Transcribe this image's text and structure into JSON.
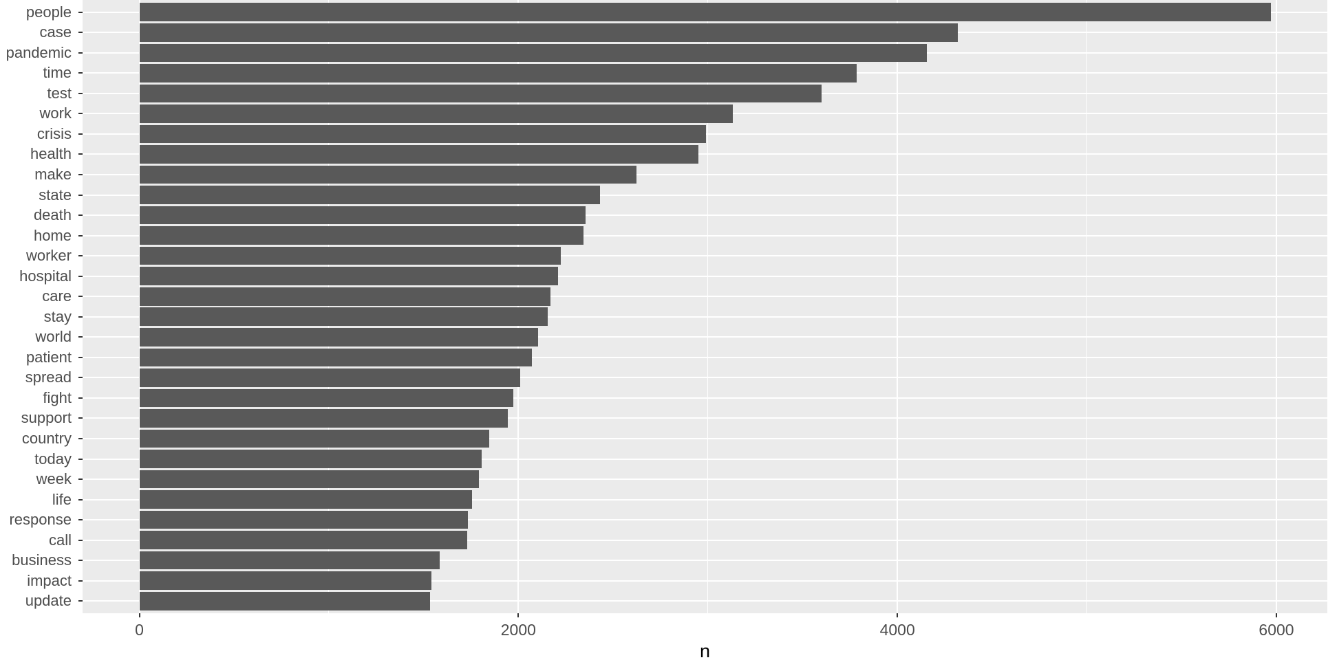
{
  "chart_data": {
    "type": "bar",
    "orientation": "horizontal",
    "title": "",
    "xlabel": "n",
    "ylabel": "",
    "categories": [
      "people",
      "case",
      "pandemic",
      "time",
      "test",
      "work",
      "crisis",
      "health",
      "make",
      "state",
      "death",
      "home",
      "worker",
      "hospital",
      "care",
      "stay",
      "world",
      "patient",
      "spread",
      "fight",
      "support",
      "country",
      "today",
      "week",
      "life",
      "response",
      "call",
      "business",
      "impact",
      "update"
    ],
    "values": [
      5970,
      4320,
      4155,
      3785,
      3600,
      3130,
      2990,
      2950,
      2625,
      2430,
      2355,
      2345,
      2225,
      2210,
      2170,
      2155,
      2105,
      2070,
      2010,
      1975,
      1945,
      1845,
      1805,
      1790,
      1755,
      1735,
      1730,
      1585,
      1540,
      1535
    ],
    "x_axis": {
      "ticks": [
        0,
        2000,
        4000,
        6000
      ],
      "tick_labels": [
        "0",
        "2000",
        "4000",
        "6000"
      ],
      "minor_gridlines": [
        1000,
        3000,
        5000
      ],
      "range": [
        0,
        6000
      ]
    },
    "legend": "none",
    "grid": "on",
    "style": {
      "bar_color": "#595959",
      "panel_bg": "#EBEBEB",
      "grid_color": "#FFFFFF",
      "tick_text_color": "#4D4D4D",
      "axis_title_color": "#000000",
      "tick_mark_color": "#333333",
      "outer_bg": "#FFFFFF"
    }
  }
}
